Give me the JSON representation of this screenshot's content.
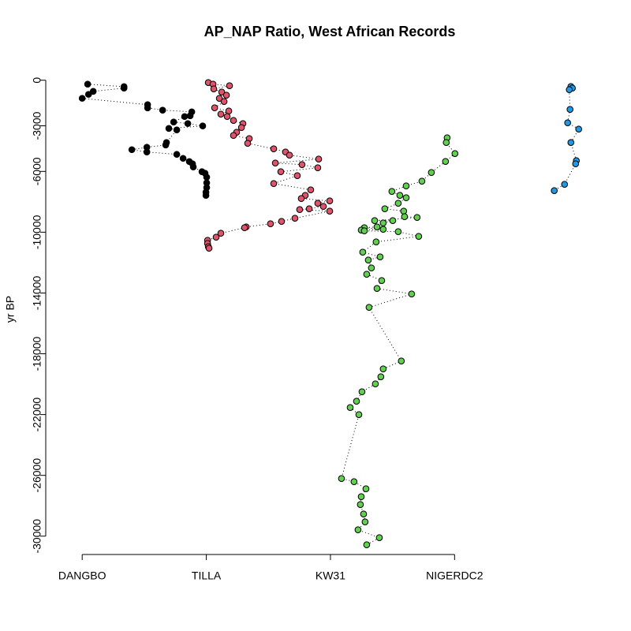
{
  "chart_data": {
    "type": "scatter",
    "title": "AP_NAP Ratio, West African Records",
    "y_label": "yr BP",
    "xlim": [
      0.77,
      5.04
    ],
    "ylim": [
      -31000,
      400
    ],
    "xticks": [
      {
        "value": 1,
        "label": "DANGBO"
      },
      {
        "value": 2,
        "label": "TILLA"
      },
      {
        "value": 3,
        "label": "KW31"
      },
      {
        "value": 4,
        "label": "NIGERDC2"
      }
    ],
    "yticks": [
      0,
      -3000,
      -6000,
      -10000,
      -14000,
      -18000,
      -22000,
      -26000,
      -30000
    ],
    "line_style": "dotted",
    "series": [
      {
        "color": "#000000",
        "x": [
          1.044,
          1.337,
          1.337,
          1.089,
          1.051,
          1.0,
          1.527,
          1.527,
          1.648,
          1.883,
          1.87,
          1.825,
          1.737,
          1.851,
          1.971,
          1.698,
          1.762,
          1.679,
          1.673,
          1.521,
          1.4,
          1.521,
          1.762,
          1.813,
          1.863,
          1.889,
          1.895,
          1.965,
          1.99,
          2.003,
          2.003,
          2.003,
          1.997,
          1.997
        ],
        "values": [
          -260,
          -420,
          -520,
          -730,
          -930,
          -1190,
          -1610,
          -1820,
          -1970,
          -2080,
          -2340,
          -2390,
          -2750,
          -2850,
          -3010,
          -3170,
          -3270,
          -4100,
          -4260,
          -4410,
          -4570,
          -4720,
          -4880,
          -5140,
          -5350,
          -5500,
          -5710,
          -6020,
          -6120,
          -6380,
          -6750,
          -7060,
          -7370,
          -7580
        ]
      },
      {
        "color": "#DF536B",
        "x": [
          2.016,
          2.054,
          2.187,
          2.06,
          2.124,
          2.162,
          2.105,
          2.143,
          2.067,
          2.181,
          2.117,
          2.168,
          2.219,
          2.295,
          2.283,
          2.244,
          2.219,
          2.346,
          2.333,
          2.543,
          2.638,
          2.67,
          2.905,
          2.556,
          2.771,
          2.898,
          2.6,
          2.733,
          2.543,
          2.841,
          2.797,
          2.765,
          2.994,
          2.898,
          2.943,
          2.829,
          2.752,
          2.994,
          2.714,
          2.606,
          2.517,
          2.321,
          2.308,
          2.117,
          2.079,
          2.01,
          2.01,
          2.016,
          2.022
        ],
        "values": [
          -156,
          -260,
          -363,
          -571,
          -778,
          -986,
          -1194,
          -1401,
          -1817,
          -2024,
          -2232,
          -2387,
          -2647,
          -2855,
          -3114,
          -3425,
          -3633,
          -3841,
          -4152,
          -4515,
          -4723,
          -4931,
          -5190,
          -5449,
          -5553,
          -5761,
          -6020,
          -6280,
          -6799,
          -7214,
          -7577,
          -7785,
          -7941,
          -8096,
          -8304,
          -8460,
          -8512,
          -8615,
          -9083,
          -9290,
          -9446,
          -9653,
          -9705,
          -10068,
          -10328,
          -10536,
          -10743,
          -10951,
          -11055
        ]
      },
      {
        "color": "#61D04F",
        "x": [
          3.94,
          3.933,
          4.003,
          3.927,
          3.813,
          3.737,
          3.61,
          3.495,
          3.559,
          3.61,
          3.546,
          3.438,
          3.59,
          3.597,
          3.698,
          3.356,
          3.502,
          3.425,
          3.375,
          3.273,
          3.425,
          3.248,
          3.273,
          3.546,
          3.711,
          3.368,
          3.26,
          3.4,
          3.305,
          3.33,
          3.292,
          3.413,
          3.375,
          3.654,
          3.311,
          3.571,
          3.425,
          3.406,
          3.362,
          3.254,
          3.21,
          3.159,
          3.229,
          3.089,
          3.19,
          3.286,
          3.248,
          3.241,
          3.267,
          3.279,
          3.222,
          3.394,
          3.292
        ],
        "values": [
          -3789,
          -4100,
          -4827,
          -5346,
          -6073,
          -6644,
          -6955,
          -7319,
          -7578,
          -7733,
          -8096,
          -8460,
          -8615,
          -8979,
          -9031,
          -9238,
          -9238,
          -9394,
          -9653,
          -9705,
          -9809,
          -9861,
          -9913,
          -9965,
          -10276,
          -10640,
          -11314,
          -11626,
          -11833,
          -12352,
          -12767,
          -13183,
          -13702,
          -14065,
          -14947,
          -18476,
          -18995,
          -19514,
          -19982,
          -20501,
          -21123,
          -21539,
          -22006,
          -26210,
          -26417,
          -26884,
          -27403,
          -27922,
          -28545,
          -29064,
          -29583,
          -30102,
          -30569
        ]
      },
      {
        "color": "#2297E6",
        "x": [
          4.937,
          4.949,
          4.924,
          4.93,
          4.911,
          5.0,
          4.937,
          4.981,
          4.975,
          4.886,
          4.803
        ],
        "values": [
          -415,
          -519,
          -623,
          -1920,
          -2803,
          -3218,
          -4100,
          -5294,
          -5501,
          -6851,
          -7266
        ]
      }
    ]
  }
}
